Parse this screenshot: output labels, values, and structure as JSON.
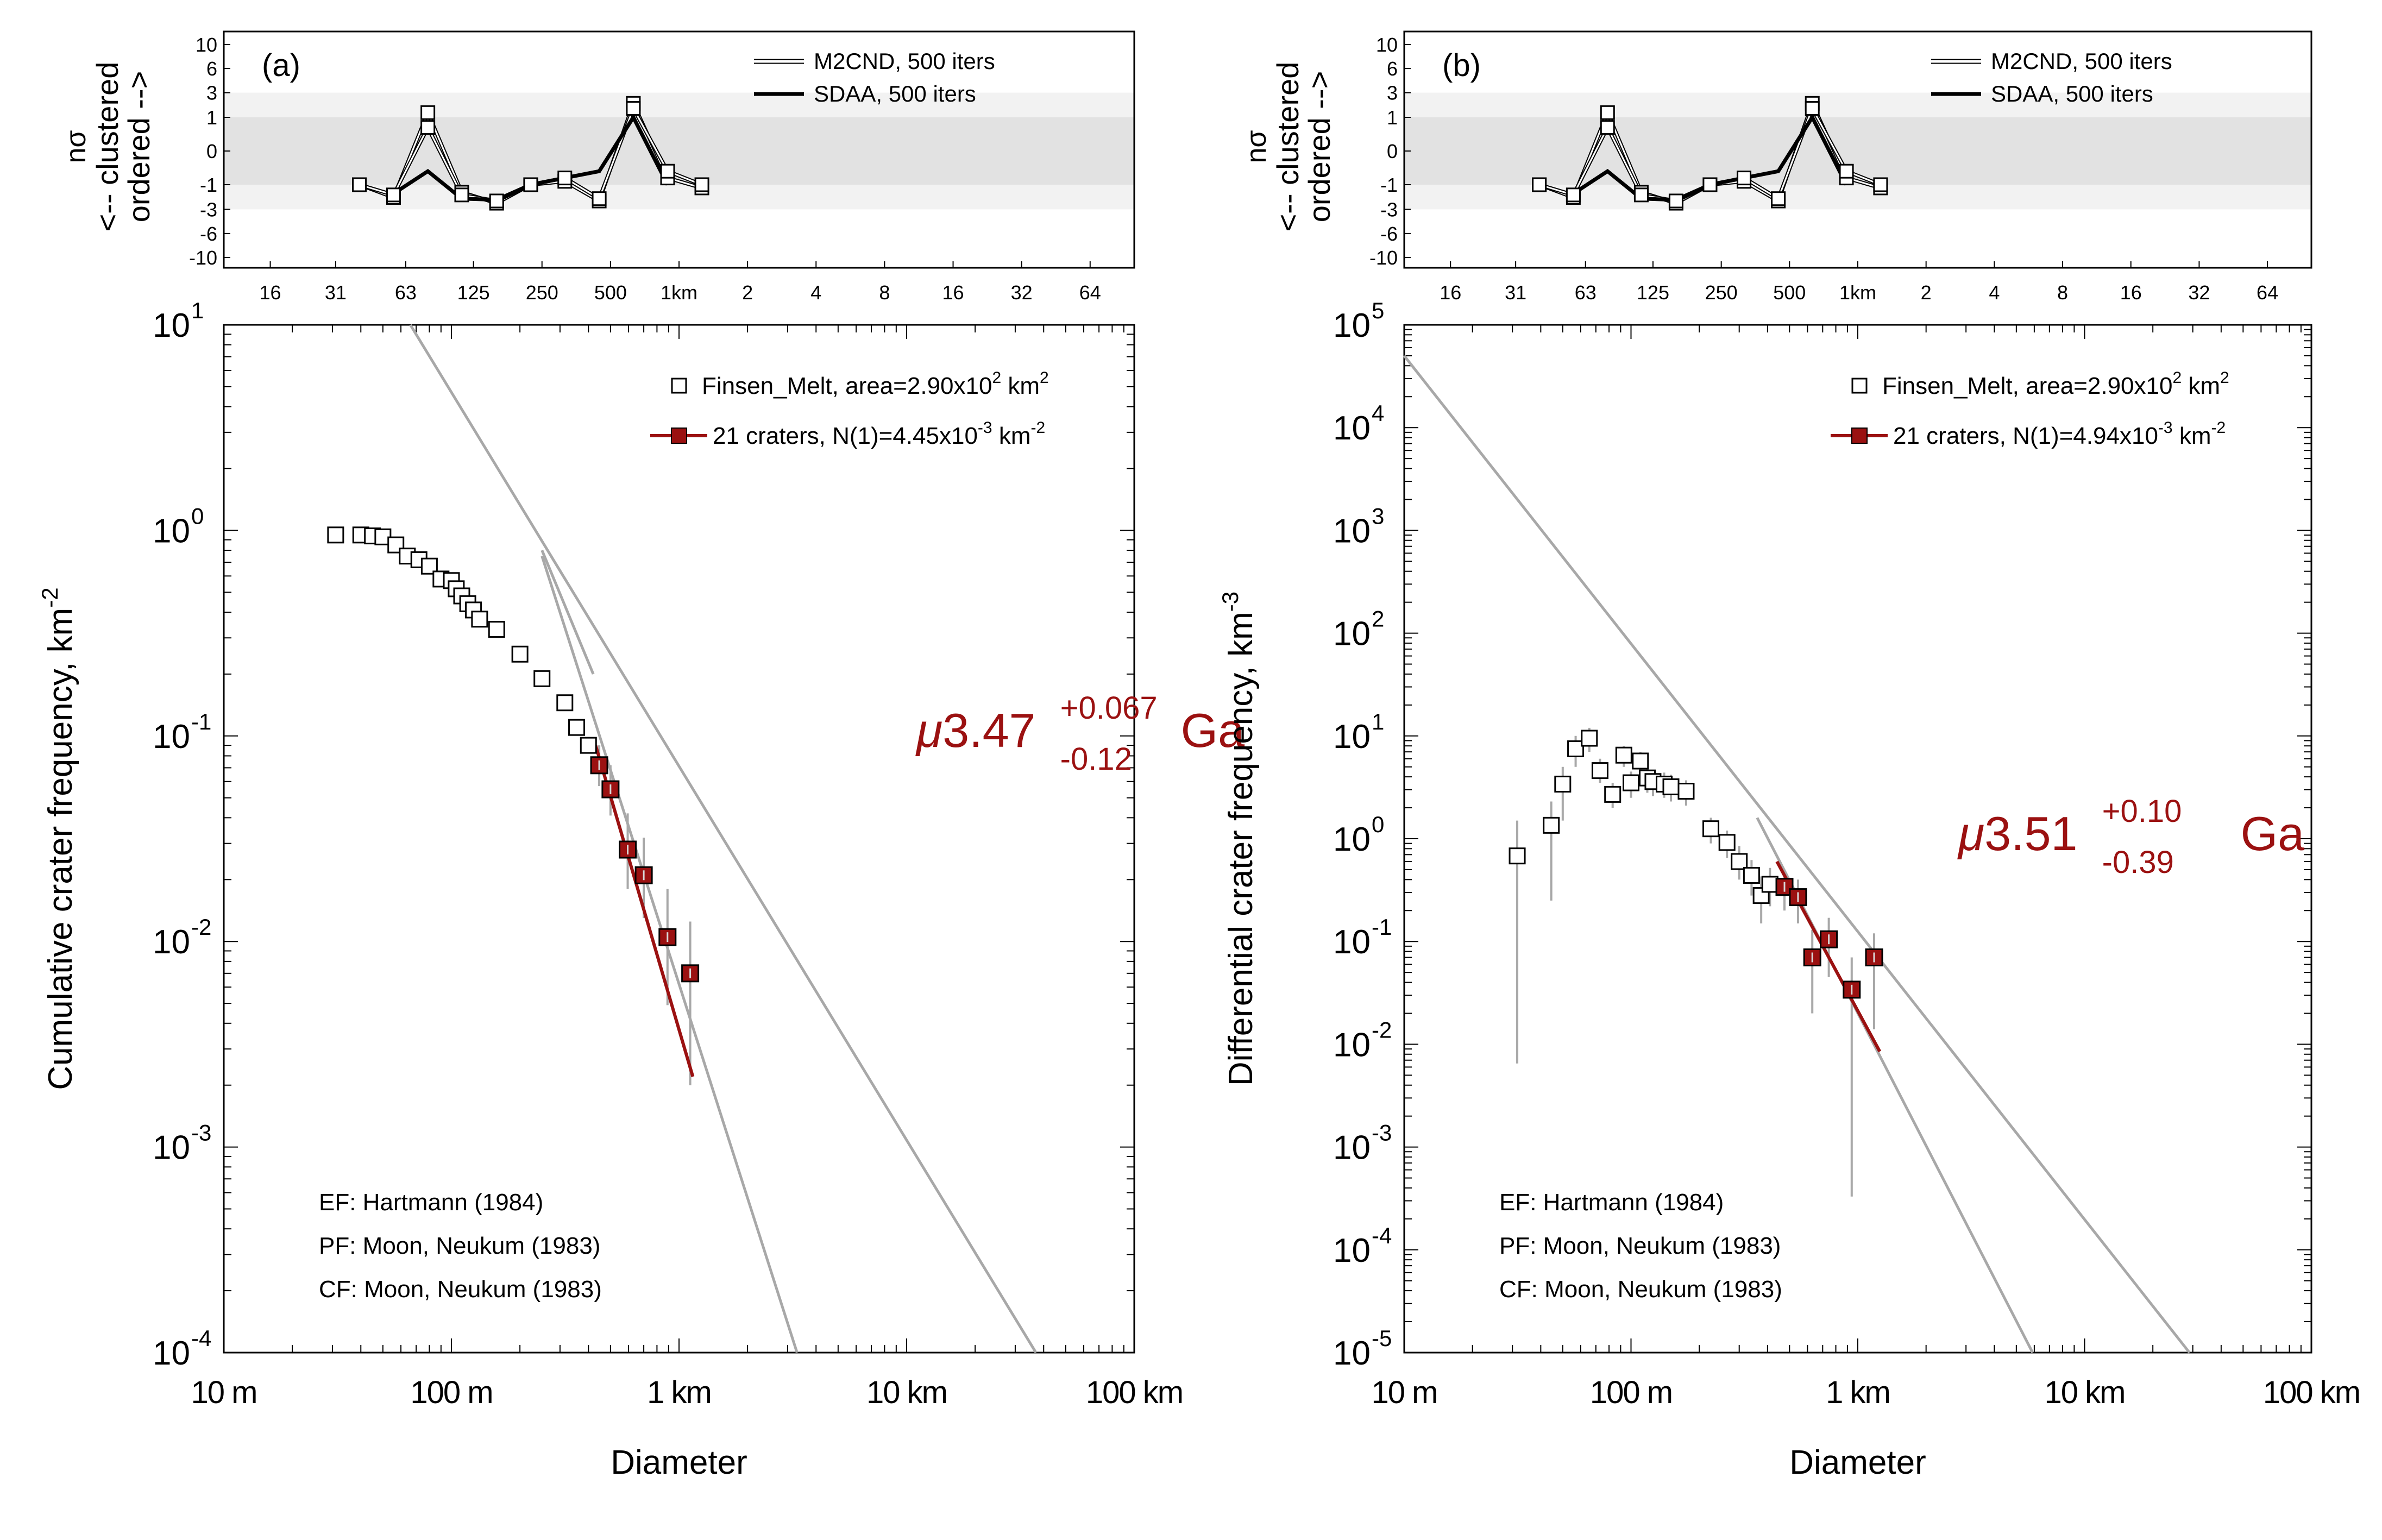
{
  "chart_data": [
    {
      "type": "line",
      "panel_label": "(a)",
      "x_ticks": [
        "16",
        "31",
        "63",
        "125",
        "250",
        "500",
        "1km",
        "2",
        "4",
        "8",
        "16",
        "32",
        "64"
      ],
      "y_ticks": [
        "10",
        "6",
        "3",
        "1",
        "0",
        "-1",
        "-3",
        "-6",
        "-10"
      ],
      "ylabel_lines": [
        "nσ",
        "<-- clustered",
        "ordered -->"
      ],
      "legend": [
        {
          "name": "M2CND, 500 iters"
        },
        {
          "name": "SDAA, 500 iters"
        }
      ],
      "x_km": [
        0.0394,
        0.0557,
        0.0788,
        0.111,
        0.158,
        0.223,
        0.315,
        0.446,
        0.63,
        0.891,
        1.26
      ],
      "series_m2cnd_outer": [
        -1.0,
        -1.9,
        1.3,
        -1.5,
        -2.4,
        -1.0,
        -0.9,
        -2.2,
        2.0,
        -0.8,
        -1.2
      ],
      "series_m2cnd_inner": [
        -1.0,
        -1.7,
        0.7,
        -1.7,
        -2.2,
        -1.0,
        -0.8,
        -2.0,
        1.6,
        -0.6,
        -1.0
      ],
      "series_sdaa": [
        null,
        -1.6,
        -0.6,
        -2.0,
        -2.1,
        -1.0,
        -0.8,
        -0.6,
        1.0,
        -1.0,
        null
      ]
    },
    {
      "type": "scatter",
      "xlabel": "Diameter",
      "ylabel": "Cumulative crater frequency, km",
      "ylabel_exp": "-2",
      "x_ticks": [
        "10 m",
        "100 m",
        "1 km",
        "10 km",
        "100 km"
      ],
      "y_ticks": [
        {
          "b": "10",
          "e": "1"
        },
        {
          "b": "10",
          "e": "0"
        },
        {
          "b": "10",
          "e": "-1"
        },
        {
          "b": "10",
          "e": "-2"
        },
        {
          "b": "10",
          "e": "-3"
        },
        {
          "b": "10",
          "e": "-4"
        }
      ],
      "xlim_km": [
        0.01,
        100
      ],
      "ylim": [
        0.0001,
        10
      ],
      "legend": [
        {
          "pre": "Finsen_Melt, area=2.90x10",
          "sup": "2",
          "post": " km"
        },
        {
          "pre": "21 craters, N(1)=4.45x10",
          "sup": "-3",
          "post": " km"
        }
      ],
      "legend_sup_unit": [
        "2",
        "-2"
      ],
      "age": {
        "mu": "μ",
        "value": "3.47",
        "plus": "+0.067",
        "minus": "-0.12",
        "unit": "Ga"
      },
      "notes": [
        "EF: Hartmann (1984)",
        "PF: Moon, Neukum (1983)",
        "CF: Moon, Neukum (1983)"
      ],
      "points_open": [
        [
          0.031,
          0.95
        ],
        [
          0.04,
          0.95
        ],
        [
          0.045,
          0.94
        ],
        [
          0.05,
          0.93
        ],
        [
          0.057,
          0.85
        ],
        [
          0.064,
          0.75
        ],
        [
          0.072,
          0.72
        ],
        [
          0.08,
          0.67
        ],
        [
          0.09,
          0.58
        ],
        [
          0.1,
          0.57
        ],
        [
          0.105,
          0.52
        ],
        [
          0.111,
          0.48
        ],
        [
          0.118,
          0.44
        ],
        [
          0.125,
          0.41
        ],
        [
          0.133,
          0.37
        ],
        [
          0.158,
          0.33
        ],
        [
          0.2,
          0.25
        ],
        [
          0.25,
          0.19
        ],
        [
          0.315,
          0.145
        ],
        [
          0.355,
          0.11
        ],
        [
          0.4,
          0.09
        ]
      ],
      "points_fit": [
        {
          "x": 0.446,
          "y": 0.072,
          "lo": 0.057,
          "hi": 0.09
        },
        {
          "x": 0.5,
          "y": 0.055,
          "lo": 0.041,
          "hi": 0.072
        },
        {
          "x": 0.595,
          "y": 0.028,
          "lo": 0.018,
          "hi": 0.042
        },
        {
          "x": 0.7,
          "y": 0.021,
          "lo": 0.013,
          "hi": 0.032
        },
        {
          "x": 0.89,
          "y": 0.0105,
          "lo": 0.0049,
          "hi": 0.018
        },
        {
          "x": 1.12,
          "y": 0.007,
          "lo": 0.002,
          "hi": 0.0125
        }
      ],
      "fit_line": [
        [
          0.43,
          0.09
        ],
        [
          1.15,
          0.0022
        ]
      ],
      "grey_lines": [
        [
          [
            0.066,
            10
          ],
          [
            37,
            0.0001
          ]
        ],
        [
          [
            0.25,
            0.75
          ],
          [
            3.3,
            0.0001
          ]
        ],
        [
          [
            0.25,
            0.8
          ],
          [
            0.42,
            0.2
          ]
        ]
      ]
    },
    {
      "type": "line",
      "panel_label": "(b)",
      "x_ticks": [
        "16",
        "31",
        "63",
        "125",
        "250",
        "500",
        "1km",
        "2",
        "4",
        "8",
        "16",
        "32",
        "64"
      ],
      "y_ticks": [
        "10",
        "6",
        "3",
        "1",
        "0",
        "-1",
        "-3",
        "-6",
        "-10"
      ],
      "ylabel_lines": [
        "nσ",
        "<-- clustered",
        "ordered -->"
      ],
      "legend": [
        {
          "name": "M2CND, 500 iters"
        },
        {
          "name": "SDAA, 500 iters"
        }
      ],
      "x_km": [
        0.0394,
        0.0557,
        0.0788,
        0.111,
        0.158,
        0.223,
        0.315,
        0.446,
        0.63,
        0.891,
        1.26
      ],
      "series_m2cnd_outer": [
        -1.0,
        -1.9,
        1.3,
        -1.5,
        -2.4,
        -1.0,
        -0.9,
        -2.2,
        2.0,
        -0.8,
        -1.2
      ],
      "series_m2cnd_inner": [
        -1.0,
        -1.7,
        0.7,
        -1.7,
        -2.2,
        -1.0,
        -0.8,
        -2.0,
        1.6,
        -0.6,
        -1.0
      ],
      "series_sdaa": [
        null,
        -1.6,
        -0.6,
        -2.0,
        -2.1,
        -1.0,
        -0.8,
        -0.6,
        1.0,
        -1.0,
        null
      ]
    },
    {
      "type": "scatter",
      "xlabel": "Diameter",
      "ylabel": "Differential crater frequency, km",
      "ylabel_exp": "-3",
      "x_ticks": [
        "10 m",
        "100 m",
        "1 km",
        "10 km",
        "100 km"
      ],
      "y_ticks": [
        {
          "b": "10",
          "e": "5"
        },
        {
          "b": "10",
          "e": "4"
        },
        {
          "b": "10",
          "e": "3"
        },
        {
          "b": "10",
          "e": "2"
        },
        {
          "b": "10",
          "e": "1"
        },
        {
          "b": "10",
          "e": "0"
        },
        {
          "b": "10",
          "e": "-1"
        },
        {
          "b": "10",
          "e": "-2"
        },
        {
          "b": "10",
          "e": "-3"
        },
        {
          "b": "10",
          "e": "-4"
        },
        {
          "b": "10",
          "e": "-5"
        }
      ],
      "xlim_km": [
        0.01,
        100
      ],
      "ylim": [
        1e-05,
        100000
      ],
      "legend": [
        {
          "pre": "Finsen_Melt, area=2.90x10",
          "sup": "2",
          "post": " km"
        },
        {
          "pre": "21 craters, N(1)=4.94x10",
          "sup": "-3",
          "post": " km"
        }
      ],
      "legend_sup_unit": [
        "2",
        "-2"
      ],
      "age": {
        "mu": "μ",
        "value": "3.51",
        "plus": "+0.10",
        "minus": "-0.39",
        "unit": "Ga"
      },
      "notes": [
        "EF: Hartmann (1984)",
        "PF: Moon, Neukum (1983)",
        "CF: Moon, Neukum (1983)"
      ],
      "points_open": [
        {
          "x": 0.0315,
          "y": 0.68,
          "lo": 0.0065,
          "hi": 1.5
        },
        {
          "x": 0.0445,
          "y": 1.35,
          "lo": 0.25,
          "hi": 2.3
        },
        {
          "x": 0.05,
          "y": 3.4,
          "lo": 1.5,
          "hi": 5.0
        },
        {
          "x": 0.057,
          "y": 7.5,
          "lo": 5.0,
          "hi": 10
        },
        {
          "x": 0.0655,
          "y": 9.5,
          "lo": 7.0,
          "hi": 12
        },
        {
          "x": 0.073,
          "y": 4.6,
          "lo": 3.5,
          "hi": 6
        },
        {
          "x": 0.083,
          "y": 2.7,
          "lo": 2.0,
          "hi": 3.5
        },
        {
          "x": 0.093,
          "y": 6.5,
          "lo": 5.0,
          "hi": 8
        },
        {
          "x": 0.1,
          "y": 3.5,
          "lo": 2.5,
          "hi": 4.5
        },
        {
          "x": 0.11,
          "y": 5.7,
          "lo": 4.5,
          "hi": 7
        },
        {
          "x": 0.118,
          "y": 3.9,
          "lo": 2.8,
          "hi": 5
        },
        {
          "x": 0.125,
          "y": 3.6,
          "lo": 2.6,
          "hi": 4.6
        },
        {
          "x": 0.14,
          "y": 3.4,
          "lo": 2.5,
          "hi": 4.4
        },
        {
          "x": 0.15,
          "y": 3.2,
          "lo": 2.3,
          "hi": 4.2
        },
        {
          "x": 0.175,
          "y": 2.9,
          "lo": 2.1,
          "hi": 3.7
        },
        {
          "x": 0.225,
          "y": 1.25,
          "lo": 0.9,
          "hi": 1.6
        },
        {
          "x": 0.265,
          "y": 0.92,
          "lo": 0.65,
          "hi": 1.2
        },
        {
          "x": 0.3,
          "y": 0.6,
          "lo": 0.4,
          "hi": 0.85
        },
        {
          "x": 0.34,
          "y": 0.44,
          "lo": 0.28,
          "hi": 0.62
        },
        {
          "x": 0.375,
          "y": 0.28,
          "lo": 0.15,
          "hi": 0.43
        },
        {
          "x": 0.41,
          "y": 0.36,
          "lo": 0.22,
          "hi": 0.52
        }
      ],
      "points_fit": [
        {
          "x": 0.475,
          "y": 0.34,
          "lo": 0.2,
          "hi": 0.5
        },
        {
          "x": 0.545,
          "y": 0.27,
          "lo": 0.15,
          "hi": 0.4
        },
        {
          "x": 0.63,
          "y": 0.07,
          "lo": 0.02,
          "hi": 0.13
        },
        {
          "x": 0.745,
          "y": 0.105,
          "lo": 0.045,
          "hi": 0.17
        },
        {
          "x": 0.94,
          "y": 0.034,
          "lo": 0.00033,
          "hi": 0.07
        },
        {
          "x": 1.18,
          "y": 0.07,
          "lo": 0.014,
          "hi": 0.12
        }
      ],
      "fit_line": [
        [
          0.44,
          0.6
        ],
        [
          1.25,
          0.0085
        ]
      ],
      "grey_lines": [
        [
          [
            0.01,
            50000
          ],
          [
            29,
            1e-05
          ]
        ],
        [
          [
            0.36,
            1.6
          ],
          [
            5.9,
            1e-05
          ]
        ]
      ]
    }
  ]
}
